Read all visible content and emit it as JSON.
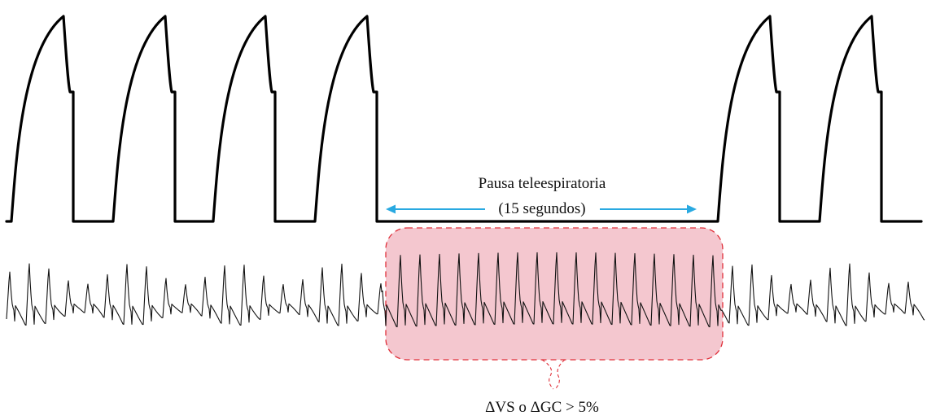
{
  "pause_label": {
    "line1": "Pausa teleespiratoria",
    "line2": "(15 segundos)"
  },
  "result_label": "ΔVS o ΔGC > 5%",
  "colors": {
    "pressure_waveform": "#000000",
    "arterial_waveform": "#111111",
    "arrow": "#29a9e1",
    "highlight_fill": "#f4c7cf",
    "highlight_stroke": "#e0303a"
  }
}
